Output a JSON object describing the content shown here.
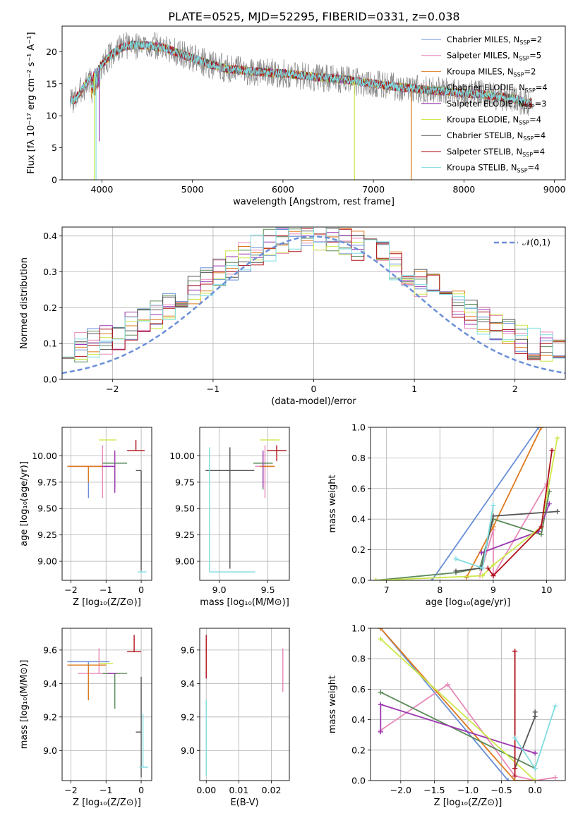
{
  "figure_title": "PLATE=0525, MJD=52295, FIBERID=0331, z=0.038",
  "colors": {
    "chabrier_miles": "#6a8fd8",
    "salpeter_miles": "#e889b8",
    "kroupa_miles": "#de7a1e",
    "chabrier_elodie": "#5a8a5a",
    "salpeter_elodie": "#9b36b0",
    "kroupa_elodie": "#cce84a",
    "chabrier_stelib": "#555555",
    "salpeter_stelib": "#b0101a",
    "kroupa_stelib": "#7fdce0",
    "data_spectrum": "#888888",
    "normal_curve": "#6a8fd8",
    "grid": "#b0b0b0"
  },
  "chart_data": [
    {
      "id": "spectrum",
      "type": "line",
      "title": "PLATE=0525, MJD=52295, FIBERID=0331, z=0.038",
      "xlabel": "wavelength [Angstrom, rest frame]",
      "ylabel": "Flux [fλ 10⁻¹⁷ erg cm⁻² s⁻¹ A⁻¹]",
      "xlim": [
        3560,
        9120
      ],
      "ylim": [
        0,
        24
      ],
      "xticks": [
        4000,
        5000,
        6000,
        7000,
        8000,
        9000
      ],
      "yticks": [
        0,
        5,
        10,
        15,
        20
      ],
      "grid": false,
      "legend_position": "right",
      "legend": [
        {
          "label": "Chabrier MILES, N",
          "sub": "SSP",
          "suffix": "=2",
          "color": "#6a8fd8"
        },
        {
          "label": "Salpeter MILES, N",
          "sub": "SSP",
          "suffix": "=5",
          "color": "#e889b8"
        },
        {
          "label": "Kroupa MILES, N",
          "sub": "SSP",
          "suffix": "=2",
          "color": "#de7a1e"
        },
        {
          "label": "Chabrier ELODIE, N",
          "sub": "SSP",
          "suffix": "=4",
          "color": "#5a8a5a"
        },
        {
          "label": "Salpeter ELODIE, N",
          "sub": "SSP",
          "suffix": "=3",
          "color": "#9b36b0"
        },
        {
          "label": "Kroupa ELODIE, N",
          "sub": "SSP",
          "suffix": "=4",
          "color": "#cce84a"
        },
        {
          "label": "Chabrier STELIB, N",
          "sub": "SSP",
          "suffix": "=4",
          "color": "#555555"
        },
        {
          "label": "Salpeter STELIB, N",
          "sub": "SSP",
          "suffix": "=4",
          "color": "#b0101a"
        },
        {
          "label": "Kroupa STELIB, N",
          "sub": "SSP",
          "suffix": "=4",
          "color": "#7fdce0"
        }
      ],
      "continuum_x": [
        3700,
        3800,
        3900,
        4000,
        4100,
        4200,
        4300,
        4400,
        4500,
        4600,
        4700,
        4800,
        4900,
        5000,
        5200,
        5400,
        5600,
        5800,
        6000,
        6200,
        6400,
        6600,
        6800,
        7000,
        7200,
        7400,
        7600,
        7800,
        8000,
        8200,
        8400,
        8600,
        8700
      ],
      "continuum_y": [
        12.5,
        14.5,
        16.5,
        18.0,
        19.5,
        20.5,
        21.0,
        21.0,
        21.0,
        20.8,
        20.5,
        20.0,
        19.5,
        19.0,
        18.0,
        17.3,
        17.0,
        16.8,
        16.6,
        16.3,
        16.0,
        15.8,
        15.4,
        15.0,
        14.6,
        14.3,
        14.0,
        13.8,
        13.5,
        13.3,
        13.0,
        12.5,
        12.0
      ],
      "data_range_x": [
        3650,
        8750
      ],
      "dips": [
        {
          "x": 3935,
          "y": 0,
          "color": "#7fdce0"
        },
        {
          "x": 3915,
          "y": 0,
          "color": "#cce84a"
        },
        {
          "x": 3970,
          "y": 6,
          "color": "#9b36b0"
        },
        {
          "x": 6790,
          "y": 0,
          "color": "#cce84a"
        },
        {
          "x": 7420,
          "y": 0,
          "color": "#de7a1e"
        }
      ]
    },
    {
      "id": "residuals",
      "type": "histogram",
      "xlabel": "(data-model)/error",
      "ylabel": "Normed distribution",
      "xlim": [
        -2.5,
        2.5
      ],
      "ylim": [
        0,
        0.425
      ],
      "xticks": [
        -2,
        -1,
        0,
        1,
        2
      ],
      "yticks": [
        0.0,
        0.1,
        0.2,
        0.3,
        0.4
      ],
      "grid": true,
      "legend_position": "top-right",
      "normal_label": "𝒩(0,1)",
      "bins": 40
    },
    {
      "id": "age_vs_Z",
      "type": "errorbar",
      "xlabel": "Z [log₁₀(Z/Z⊙)]",
      "ylabel": "age  [log₁₀(age/yr)]",
      "xlim": [
        -2.25,
        0.3
      ],
      "ylim": [
        8.82,
        10.27
      ],
      "xticks": [
        -2,
        -1,
        0
      ],
      "yticks": [
        9.0,
        9.25,
        9.5,
        9.75,
        10.0
      ],
      "grid": true,
      "points": [
        {
          "series": "Chabrier MILES",
          "x": -1.5,
          "y": 9.9,
          "xerr": [
            0.6,
            0.6
          ],
          "yerr": [
            0.3,
            0.0
          ],
          "color": "#6a8fd8"
        },
        {
          "series": "Salpeter MILES",
          "x": -1.1,
          "y": 9.9,
          "xerr": [
            0.9,
            0.3
          ],
          "yerr": [
            0.3,
            0.2
          ],
          "color": "#e889b8"
        },
        {
          "series": "Kroupa MILES",
          "x": -1.5,
          "y": 9.9,
          "xerr": [
            0.6,
            0.5
          ],
          "yerr": [
            0.15,
            0.0
          ],
          "color": "#de7a1e"
        },
        {
          "series": "Chabrier ELODIE",
          "x": -0.75,
          "y": 9.93,
          "xerr": [
            0.35,
            0.35
          ],
          "yerr": [
            0.23,
            0.0
          ],
          "color": "#5a8a5a"
        },
        {
          "series": "Salpeter ELODIE",
          "x": -0.75,
          "y": 9.9,
          "xerr": [
            0.35,
            0.0
          ],
          "yerr": [
            0.25,
            0.15
          ],
          "color": "#9b36b0"
        },
        {
          "series": "Kroupa ELODIE",
          "x": -0.95,
          "y": 10.15,
          "xerr": [
            0.25,
            0.25
          ],
          "yerr": [
            0.0,
            0.0
          ],
          "color": "#cce84a"
        },
        {
          "series": "Chabrier STELIB",
          "x": 0.0,
          "y": 9.86,
          "xerr": [
            0.15,
            0.0
          ],
          "yerr": [
            0.95,
            0.0
          ],
          "color": "#555555"
        },
        {
          "series": "Salpeter STELIB",
          "x": -0.15,
          "y": 10.05,
          "xerr": [
            0.25,
            0.25
          ],
          "yerr": [
            0.0,
            0.1
          ],
          "color": "#b0101a"
        },
        {
          "series": "Kroupa STELIB",
          "x": 0.0,
          "y": 8.9,
          "xerr": [
            0.1,
            0.15
          ],
          "yerr": [
            0.0,
            0.0
          ],
          "color": "#7fdce0"
        }
      ]
    },
    {
      "id": "age_vs_mass",
      "type": "errorbar",
      "xlabel": "mass [log₁₀(M/M⊙)]",
      "ylabel": "",
      "xlim": [
        8.8,
        9.72
      ],
      "ylim": [
        8.82,
        10.27
      ],
      "xticks": [
        9.0,
        9.5
      ],
      "yticks": [
        9.0,
        9.25,
        9.5,
        9.75,
        10.0
      ],
      "grid": true,
      "points": [
        {
          "series": "Chabrier MILES",
          "x": 9.53,
          "y": 9.9,
          "xerr": [
            0.0,
            0.0
          ],
          "yerr": [
            0.0,
            0.0
          ],
          "color": "#6a8fd8"
        },
        {
          "series": "Salpeter MILES",
          "x": 9.47,
          "y": 9.9,
          "xerr": [
            0.1,
            0.1
          ],
          "yerr": [
            0.3,
            0.2
          ],
          "color": "#e889b8"
        },
        {
          "series": "Kroupa MILES",
          "x": 9.52,
          "y": 9.9,
          "xerr": [
            0.1,
            0.05
          ],
          "yerr": [
            0.0,
            0.0
          ],
          "color": "#de7a1e"
        },
        {
          "series": "Chabrier ELODIE",
          "x": 9.45,
          "y": 9.93,
          "xerr": [
            0.1,
            0.1
          ],
          "yerr": [
            0.25,
            0.0
          ],
          "color": "#5a8a5a"
        },
        {
          "series": "Salpeter ELODIE",
          "x": 9.45,
          "y": 9.9,
          "xerr": [
            0.0,
            0.0
          ],
          "yerr": [
            0.2,
            0.15
          ],
          "color": "#9b36b0"
        },
        {
          "series": "Kroupa ELODIE",
          "x": 9.52,
          "y": 10.15,
          "xerr": [
            0.1,
            0.1
          ],
          "yerr": [
            0.0,
            0.0
          ],
          "color": "#cce84a"
        },
        {
          "series": "Chabrier STELIB",
          "x": 9.11,
          "y": 9.86,
          "xerr": [
            0.25,
            0.25
          ],
          "yerr": [
            0.93,
            0.22
          ],
          "color": "#555555"
        },
        {
          "series": "Salpeter STELIB",
          "x": 9.59,
          "y": 10.05,
          "xerr": [
            0.1,
            0.1
          ],
          "yerr": [
            0.1,
            0.05
          ],
          "color": "#b0101a"
        },
        {
          "series": "Kroupa STELIB",
          "x": 8.9,
          "y": 8.9,
          "xerr": [
            0.0,
            0.47
          ],
          "yerr": [
            0.0,
            1.18
          ],
          "color": "#7fdce0"
        }
      ]
    },
    {
      "id": "weight_vs_age",
      "type": "line",
      "xlabel": "age  [log₁₀(age/yr)]",
      "ylabel": "mass weight",
      "xlim": [
        6.7,
        10.35
      ],
      "ylim": [
        0,
        1.0
      ],
      "xticks": [
        7,
        8,
        9,
        10
      ],
      "yticks": [
        0.0,
        0.2,
        0.4,
        0.6,
        0.8,
        1.0
      ],
      "grid": true,
      "series": [
        {
          "name": "Chabrier MILES",
          "color": "#6a8fd8",
          "x": [
            7.85,
            9.85
          ],
          "y": [
            0.0,
            1.0
          ]
        },
        {
          "name": "Salpeter MILES",
          "color": "#e889b8",
          "x": [
            8.75,
            9.0,
            9.0,
            10.0
          ],
          "y": [
            0.03,
            0.33,
            0.03,
            0.63
          ]
        },
        {
          "name": "Kroupa MILES",
          "color": "#de7a1e",
          "x": [
            8.5,
            9.0,
            9.9
          ],
          "y": [
            0.02,
            0.35,
            1.0
          ]
        },
        {
          "name": "Chabrier ELODIE",
          "color": "#5a8a5a",
          "x": [
            6.8,
            8.3,
            8.75,
            9.0,
            9.9,
            10.05
          ],
          "y": [
            0.0,
            0.05,
            0.08,
            0.4,
            0.3,
            0.58
          ]
        },
        {
          "name": "Salpeter ELODIE",
          "color": "#9b36b0",
          "x": [
            8.78,
            9.85,
            10.05
          ],
          "y": [
            0.18,
            0.32,
            0.5
          ]
        },
        {
          "name": "Kroupa ELODIE",
          "color": "#cce84a",
          "x": [
            6.8,
            8.8,
            9.0,
            9.9,
            10.2
          ],
          "y": [
            0.0,
            0.03,
            0.1,
            0.35,
            0.93
          ]
        },
        {
          "name": "Chabrier STELIB",
          "color": "#555555",
          "x": [
            8.3,
            8.78,
            9.0,
            10.2
          ],
          "y": [
            0.06,
            0.08,
            0.42,
            0.45
          ]
        },
        {
          "name": "Salpeter STELIB",
          "color": "#b0101a",
          "x": [
            8.9,
            9.0,
            9.9,
            10.1
          ],
          "y": [
            0.08,
            0.03,
            0.35,
            0.85
          ]
        },
        {
          "name": "Kroupa STELIB",
          "color": "#7fdce0",
          "x": [
            8.3,
            8.8,
            9.0
          ],
          "y": [
            0.14,
            0.08,
            0.49
          ]
        }
      ]
    },
    {
      "id": "mass_vs_Z",
      "type": "errorbar",
      "xlabel": "Z [log₁₀(Z/Z⊙)]",
      "ylabel": "mass [log₁₀(M/M⊙)]",
      "xlim": [
        -2.25,
        0.3
      ],
      "ylim": [
        8.82,
        9.73
      ],
      "xticks": [
        -2,
        -1,
        0
      ],
      "yticks": [
        9.0,
        9.2,
        9.4,
        9.6
      ],
      "grid": true,
      "points": [
        {
          "series": "Chabrier MILES",
          "x": -1.5,
          "y": 9.53,
          "xerr": [
            0.6,
            0.6
          ],
          "yerr": [
            0.23,
            0.0
          ],
          "color": "#6a8fd8"
        },
        {
          "series": "Salpeter MILES",
          "x": -1.2,
          "y": 9.46,
          "xerr": [
            0.6,
            0.6
          ],
          "yerr": [
            0.0,
            0.15
          ],
          "color": "#e889b8"
        },
        {
          "series": "Kroupa MILES",
          "x": -1.5,
          "y": 9.51,
          "xerr": [
            0.6,
            0.5
          ],
          "yerr": [
            0.21,
            0.0
          ],
          "color": "#de7a1e"
        },
        {
          "series": "Chabrier ELODIE",
          "x": -0.75,
          "y": 9.46,
          "xerr": [
            0.35,
            0.35
          ],
          "yerr": [
            0.21,
            0.0
          ],
          "color": "#5a8a5a"
        },
        {
          "series": "Salpeter ELODIE",
          "x": -0.7,
          "y": 9.46,
          "xerr": [
            0.25,
            0.0
          ],
          "yerr": [
            0.0,
            0.0
          ],
          "color": "#9b36b0"
        },
        {
          "series": "Kroupa ELODIE",
          "x": -1.0,
          "y": 9.52,
          "xerr": [
            0.2,
            0.2
          ],
          "yerr": [
            0.0,
            0.0
          ],
          "color": "#cce84a"
        },
        {
          "series": "Chabrier STELIB",
          "x": 0.0,
          "y": 9.11,
          "xerr": [
            0.15,
            0.0
          ],
          "yerr": [
            0.27,
            0.33
          ],
          "color": "#555555"
        },
        {
          "series": "Salpeter STELIB",
          "x": -0.2,
          "y": 9.59,
          "xerr": [
            0.2,
            0.2
          ],
          "yerr": [
            0.0,
            0.1
          ],
          "color": "#b0101a"
        },
        {
          "series": "Kroupa STELIB",
          "x": 0.05,
          "y": 8.9,
          "xerr": [
            0.1,
            0.15
          ],
          "yerr": [
            0.0,
            0.32
          ],
          "color": "#7fdce0"
        }
      ]
    },
    {
      "id": "mass_vs_EBV",
      "type": "errorbar",
      "xlabel": "E(B-V)",
      "ylabel": "",
      "xlim": [
        -0.002,
        0.0255
      ],
      "ylim": [
        8.82,
        9.73
      ],
      "xticks": [
        0.0,
        0.01,
        0.02
      ],
      "yticks": [
        9.0,
        9.2,
        9.4,
        9.6
      ],
      "grid": true,
      "points": [
        {
          "series": "Salpeter STELIB",
          "x": 0.0,
          "y": 9.59,
          "xerr": [
            0.0,
            0.0
          ],
          "yerr": [
            0.16,
            0.1
          ],
          "color": "#b0101a"
        },
        {
          "series": "Kroupa STELIB",
          "x": 0.0,
          "y": 9.1,
          "xerr": [
            0.0,
            0.0
          ],
          "yerr": [
            0.25,
            0.2
          ],
          "color": "#7fdce0"
        },
        {
          "series": "Salpeter MILES",
          "x": 0.0235,
          "y": 9.48,
          "xerr": [
            0.0,
            0.0
          ],
          "yerr": [
            0.13,
            0.13
          ],
          "color": "#e889b8"
        }
      ]
    },
    {
      "id": "weight_vs_Z",
      "type": "line",
      "xlabel": "Z [log₁₀(Z/Z⊙)]",
      "ylabel": "mass weight",
      "xlim": [
        -2.45,
        0.45
      ],
      "ylim": [
        0,
        1.0
      ],
      "xticks": [
        -2.0,
        -1.5,
        -1.0,
        -0.5,
        0.0
      ],
      "yticks": [
        0.0,
        0.2,
        0.4,
        0.6,
        0.8,
        1.0
      ],
      "grid": true,
      "series": [
        {
          "name": "Chabrier MILES",
          "color": "#6a8fd8",
          "x": [
            -2.3,
            -0.4
          ],
          "y": [
            1.0,
            0.0
          ]
        },
        {
          "name": "Salpeter MILES",
          "color": "#e889b8",
          "x": [
            -2.3,
            -1.3,
            -0.3,
            0.0,
            0.3
          ],
          "y": [
            0.33,
            0.63,
            0.03,
            0.0,
            0.02
          ]
        },
        {
          "name": "Kroupa MILES",
          "color": "#de7a1e",
          "x": [
            -2.3,
            -0.3,
            0.0
          ],
          "y": [
            1.0,
            0.0,
            0.0
          ]
        },
        {
          "name": "Chabrier ELODIE",
          "color": "#5a8a5a",
          "x": [
            -2.3,
            0.0
          ],
          "y": [
            0.58,
            0.08
          ]
        },
        {
          "name": "Salpeter ELODIE",
          "color": "#9b36b0",
          "x": [
            -2.3,
            -2.3,
            0.0
          ],
          "y": [
            0.32,
            0.5,
            0.18
          ]
        },
        {
          "name": "Kroupa ELODIE",
          "color": "#cce84a",
          "x": [
            -2.3,
            0.0
          ],
          "y": [
            0.93,
            0.0
          ]
        },
        {
          "name": "Chabrier STELIB",
          "color": "#555555",
          "x": [
            -0.3,
            0.0,
            0.0
          ],
          "y": [
            0.08,
            0.42,
            0.45
          ]
        },
        {
          "name": "Salpeter STELIB",
          "color": "#b0101a",
          "x": [
            -0.3,
            -0.3,
            -0.3
          ],
          "y": [
            0.03,
            0.85,
            0.08
          ]
        },
        {
          "name": "Kroupa STELIB",
          "color": "#7fdce0",
          "x": [
            -0.3,
            0.0,
            0.3
          ],
          "y": [
            0.28,
            0.08,
            0.49
          ]
        }
      ]
    }
  ]
}
